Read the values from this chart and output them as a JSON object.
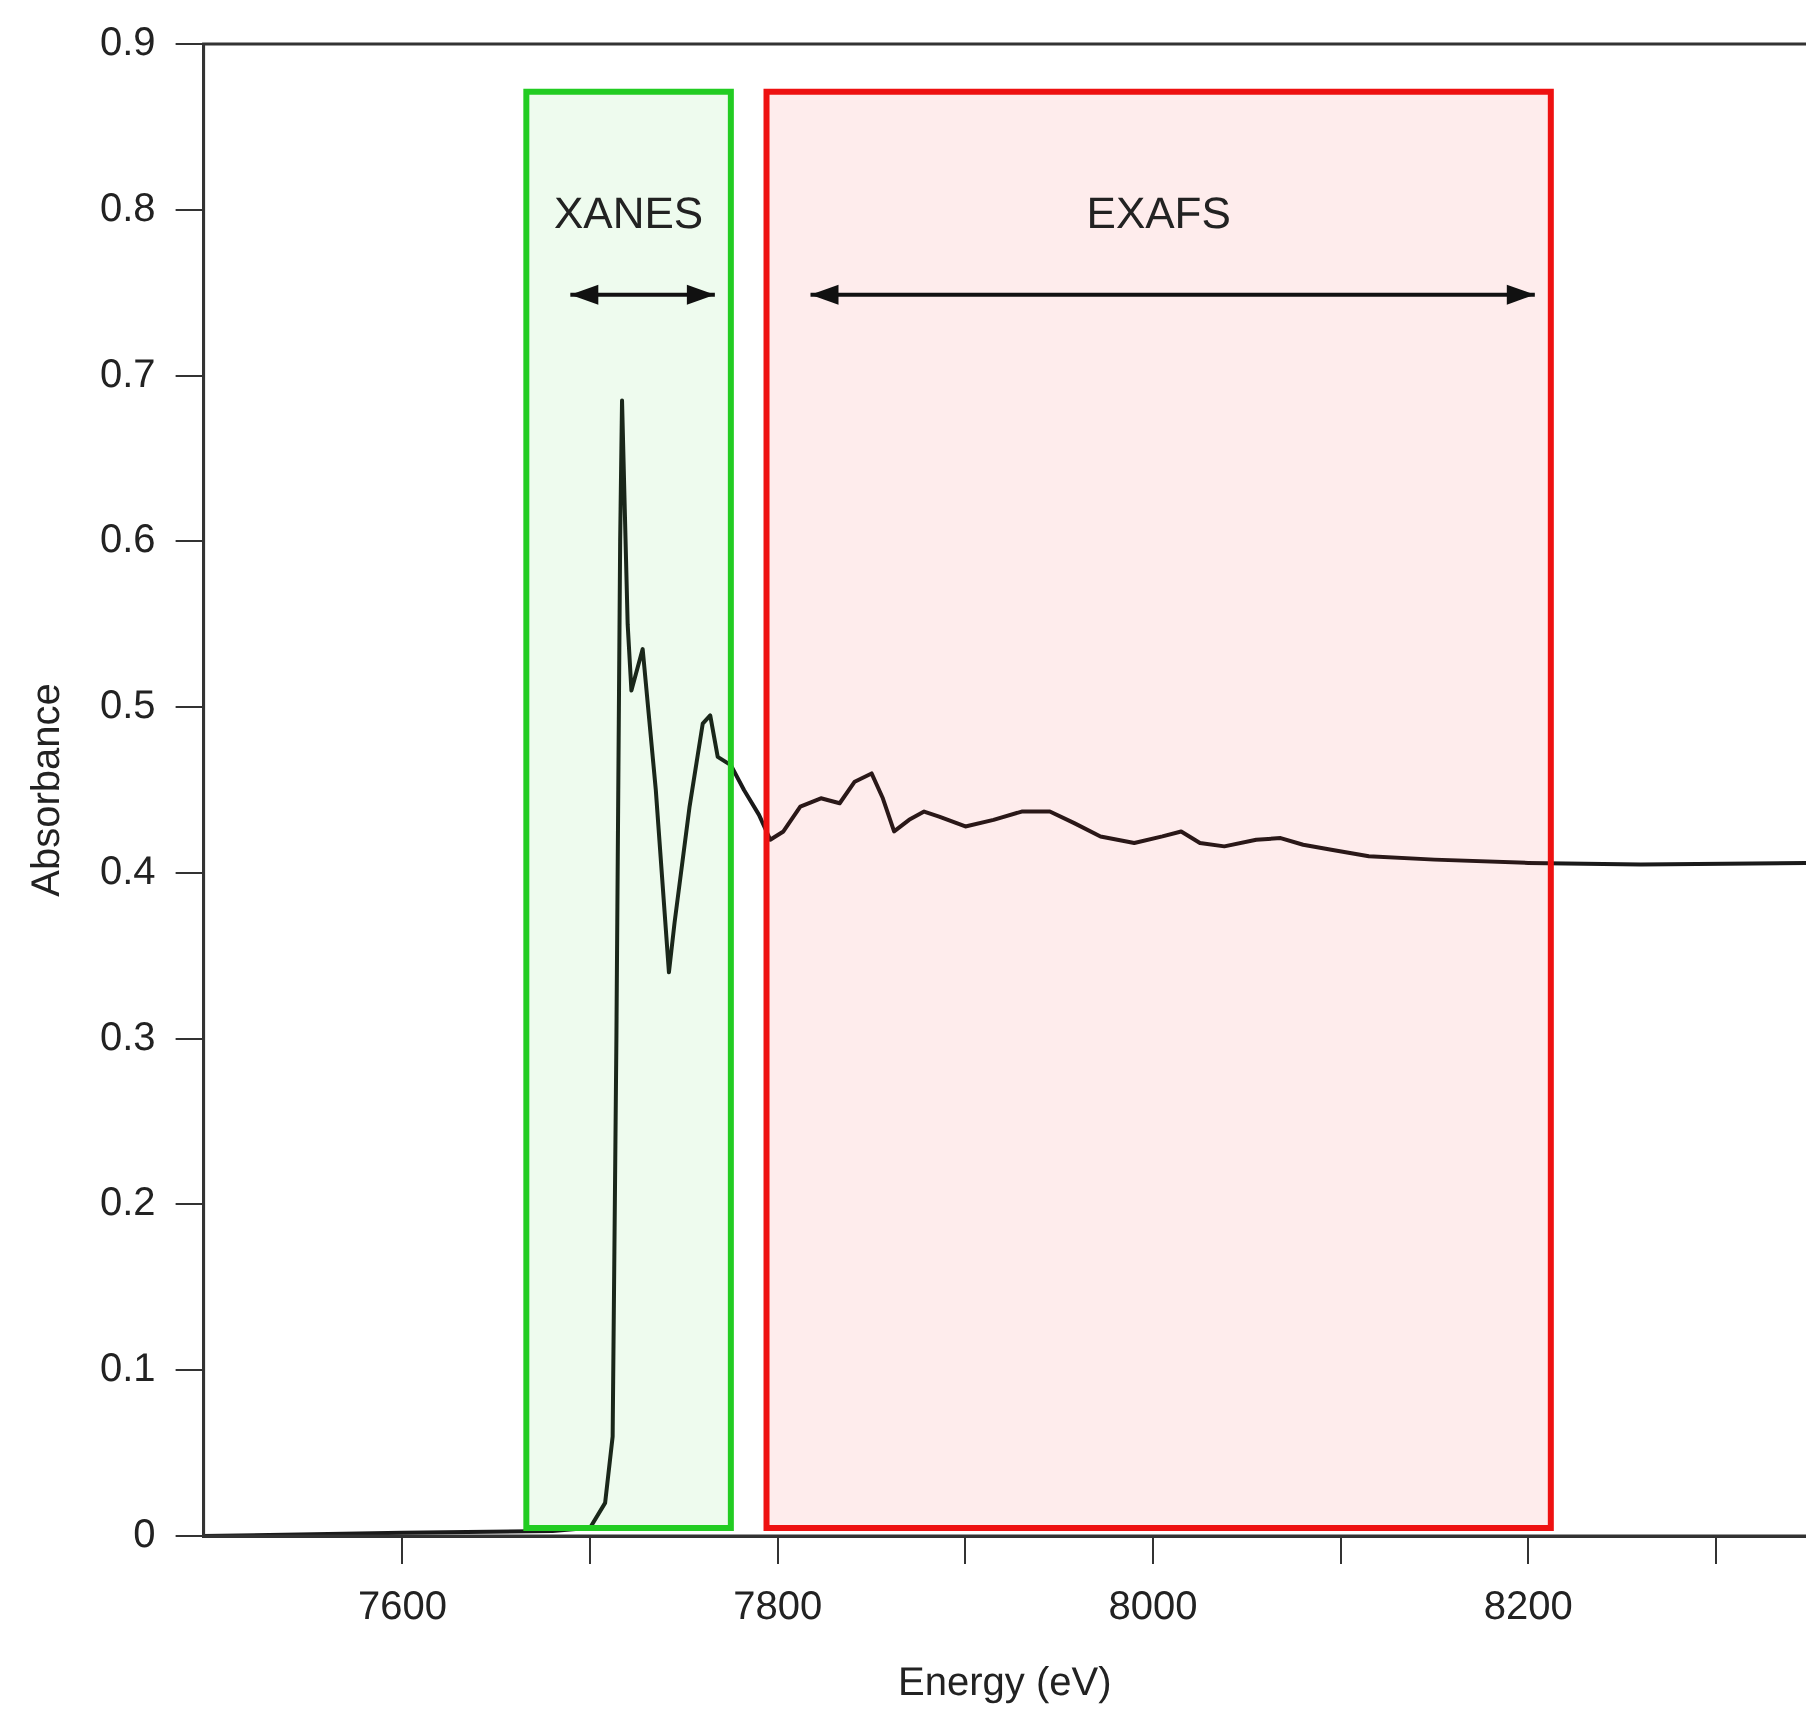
{
  "chart_data": {
    "type": "line",
    "xlabel": "Energy (eV)",
    "ylabel": "Absorbance",
    "x": [
      7494,
      7600,
      7680,
      7700,
      7708,
      7712,
      7714,
      7716,
      7717,
      7720,
      7722,
      7728,
      7735,
      7742,
      7745,
      7753,
      7760,
      7764,
      7768,
      7775,
      7782,
      7790,
      7796,
      7803,
      7812,
      7823,
      7833,
      7841,
      7850,
      7856,
      7862,
      7870,
      7878,
      7886,
      7900,
      7915,
      7930,
      7945,
      7958,
      7972,
      7990,
      8005,
      8015,
      8025,
      8038,
      8055,
      8068,
      8080,
      8095,
      8115,
      8150,
      8200,
      8260,
      8348
    ],
    "series": [
      {
        "color": "#1a1a1a",
        "values": [
          0,
          0.002,
          0.003,
          0.005,
          0.02,
          0.06,
          0.3,
          0.6,
          0.685,
          0.55,
          0.51,
          0.535,
          0.45,
          0.34,
          0.37,
          0.44,
          0.49,
          0.495,
          0.47,
          0.465,
          0.45,
          0.435,
          0.42,
          0.425,
          0.44,
          0.445,
          0.442,
          0.455,
          0.46,
          0.445,
          0.425,
          0.432,
          0.437,
          0.434,
          0.428,
          0.432,
          0.437,
          0.437,
          0.43,
          0.422,
          0.418,
          0.422,
          0.425,
          0.418,
          0.416,
          0.42,
          0.421,
          0.417,
          0.414,
          0.41,
          0.408,
          0.406,
          0.405,
          0.406
        ]
      }
    ],
    "xlim": [
      7494,
      8348
    ],
    "xticks": [
      7600,
      {
        "value": 7700,
        "label": null
      },
      7800,
      {
        "value": 7900,
        "label": null
      },
      8000,
      {
        "value": 8100,
        "label": null
      },
      8200,
      {
        "value": 8300,
        "label": null
      }
    ],
    "ylim": [
      0,
      0.9
    ],
    "yticks": [
      {
        "value": 0,
        "label": "0"
      },
      0.1,
      0.2,
      0.3,
      0.4,
      0.5,
      0.6,
      0.7,
      0.8,
      0.9
    ],
    "bands": [
      {
        "axis": "x",
        "from": 7666,
        "to": 7775,
        "label": "XANES",
        "color": "#22cc22"
      },
      {
        "axis": "x",
        "from": 7794,
        "to": 8212,
        "label": "EXAFS",
        "color": "#ee1111"
      }
    ],
    "grid": false,
    "legend": false,
    "marker": "none",
    "line_style": "solid"
  }
}
